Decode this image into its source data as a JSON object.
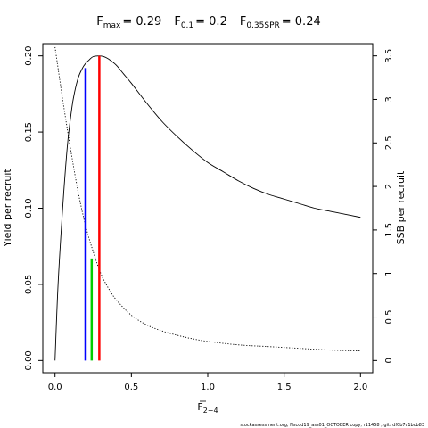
{
  "chart_data": {
    "type": "line",
    "title": {
      "fmax": {
        "label": "F",
        "sub": "max",
        "eq": "= 0.29"
      },
      "f01": {
        "label": "F",
        "sub": "0.1",
        "eq": "= 0.2"
      },
      "f035": {
        "label": "F",
        "sub": "0.35SPR",
        "eq": "= 0.24"
      }
    },
    "xlabel": {
      "main": "F",
      "sub": "2−4"
    },
    "ylabel_left": "Yield per recruit",
    "ylabel_right": "SSB per recruit",
    "xlim": [
      -0.08,
      2.08
    ],
    "ylim_left": [
      -0.008,
      0.208
    ],
    "ylim_right": [
      -0.14,
      3.64
    ],
    "x_ticks": [
      0,
      0.5,
      1,
      1.5,
      2
    ],
    "x_tick_labels": [
      "0.0",
      "0.5",
      "1.0",
      "1.5",
      "2.0"
    ],
    "y_left_ticks": [
      0,
      0.05,
      0.1,
      0.15,
      0.2
    ],
    "y_left_tick_labels": [
      "0.00",
      "0.05",
      "0.10",
      "0.15",
      "0.20"
    ],
    "y_right_ticks": [
      0,
      0.5,
      1,
      1.5,
      2,
      2.5,
      3,
      3.5
    ],
    "y_right_tick_labels": [
      "0",
      "0.5",
      "1",
      "1.5",
      "2",
      "2.5",
      "3",
      "3.5"
    ],
    "grid": false,
    "series": [
      {
        "axis": "left",
        "style": "solid",
        "color": "#000000",
        "x": [
          0,
          0.02,
          0.05,
          0.08,
          0.1,
          0.12,
          0.15,
          0.18,
          0.2,
          0.22,
          0.25,
          0.29,
          0.32,
          0.35,
          0.4,
          0.45,
          0.5,
          0.6,
          0.7,
          0.8,
          0.9,
          1.0,
          1.1,
          1.2,
          1.3,
          1.4,
          1.5,
          1.6,
          1.7,
          1.8,
          1.9,
          2.0
        ],
        "values": [
          0,
          0.05,
          0.1,
          0.14,
          0.158,
          0.172,
          0.185,
          0.192,
          0.195,
          0.197,
          0.1995,
          0.2,
          0.1995,
          0.198,
          0.194,
          0.188,
          0.182,
          0.169,
          0.157,
          0.147,
          0.138,
          0.13,
          0.124,
          0.118,
          0.113,
          0.109,
          0.106,
          0.103,
          0.1,
          0.098,
          0.096,
          0.094
        ]
      },
      {
        "axis": "right",
        "style": "dotted",
        "color": "#000000",
        "x": [
          0,
          0.05,
          0.1,
          0.15,
          0.2,
          0.25,
          0.3,
          0.35,
          0.4,
          0.5,
          0.6,
          0.7,
          0.8,
          0.9,
          1.0,
          1.2,
          1.4,
          1.6,
          1.8,
          2.0
        ],
        "values": [
          3.6,
          3.0,
          2.45,
          1.95,
          1.55,
          1.25,
          1.0,
          0.83,
          0.7,
          0.52,
          0.41,
          0.34,
          0.29,
          0.25,
          0.22,
          0.18,
          0.16,
          0.14,
          0.12,
          0.11
        ]
      }
    ],
    "reference_lines": [
      {
        "name": "F0.1",
        "x": 0.2,
        "y": 0.192,
        "color": "#0000ff"
      },
      {
        "name": "F0.35SPR",
        "x": 0.24,
        "y": 0.067,
        "color": "#00cc00"
      },
      {
        "name": "Fmax",
        "x": 0.29,
        "y": 0.2,
        "color": "#ff0000"
      }
    ]
  },
  "footer_text": "stockassessment.org, Nscod19_ass01_OCTOBER copy, r11458 , git: df0b7c1bcb83"
}
